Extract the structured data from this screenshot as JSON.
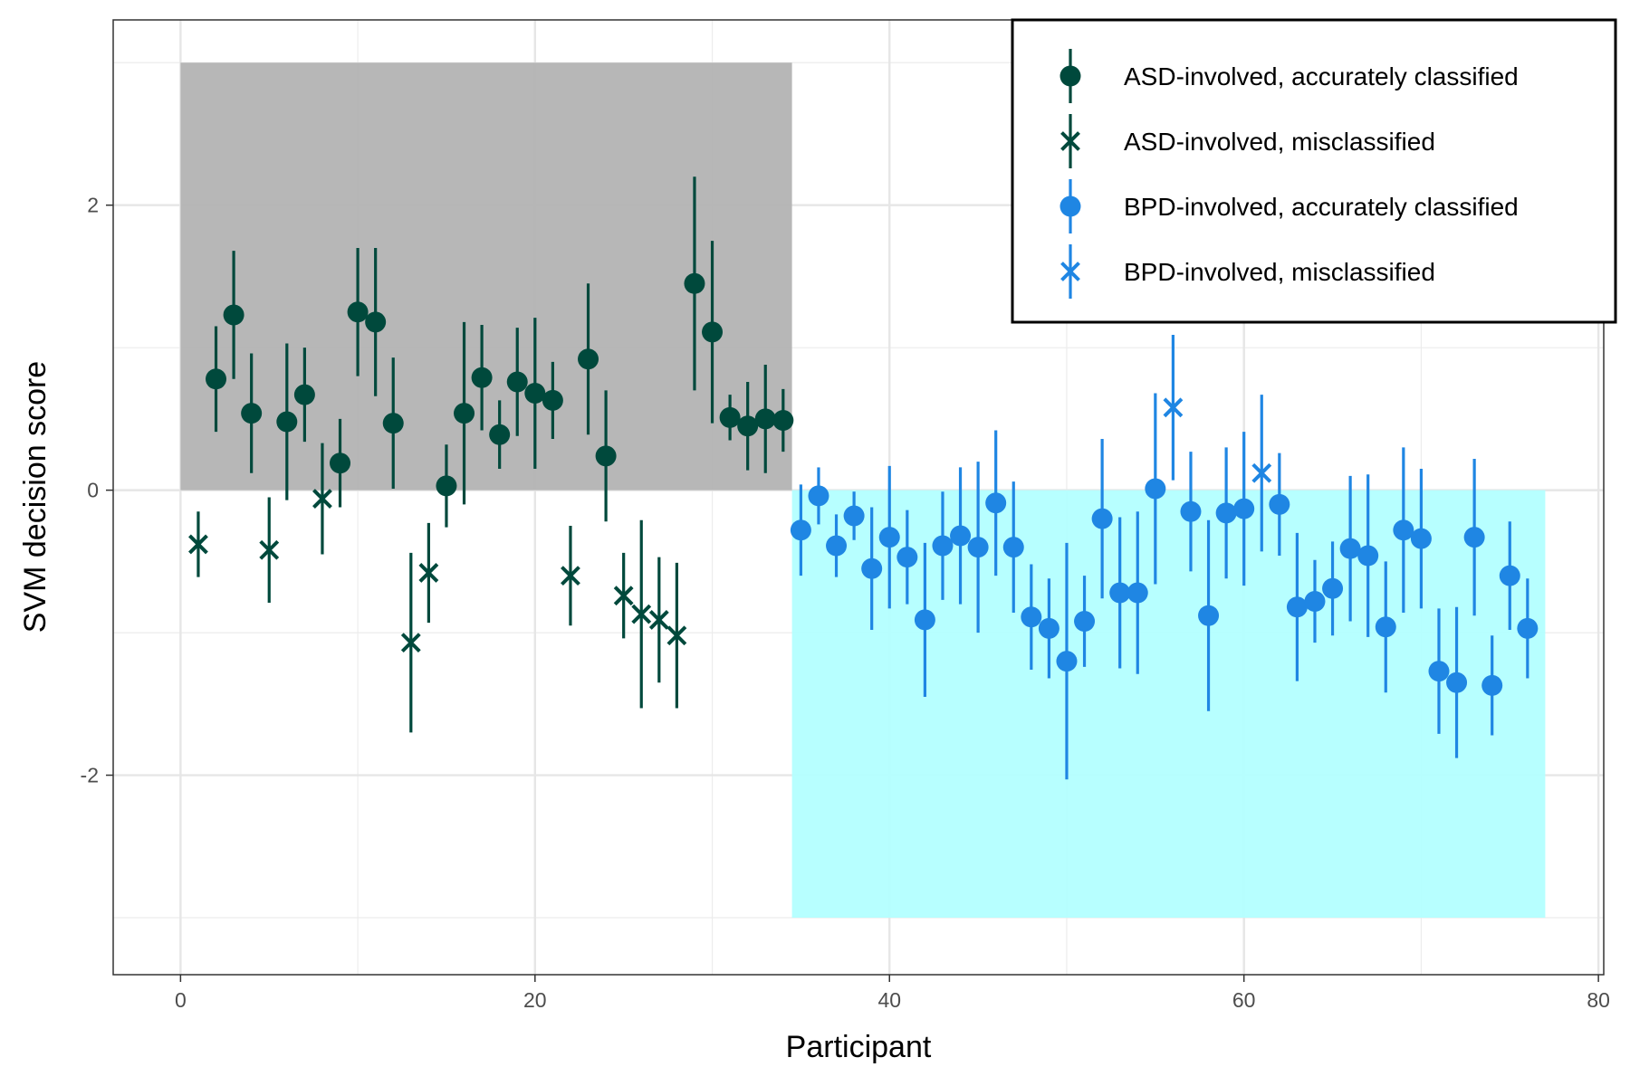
{
  "chart_data": {
    "type": "scatter",
    "title": "",
    "xlabel": "Participant",
    "ylabel": "SVM decision score",
    "xlim": [
      -3.8,
      80.3
    ],
    "ylim": [
      -3.4,
      3.3
    ],
    "x_ticks": [
      0,
      20,
      40,
      60,
      80
    ],
    "y_ticks": [
      -2,
      0,
      2
    ],
    "x_tick_labels": [
      "0",
      "20",
      "40",
      "60",
      "80"
    ],
    "y_tick_labels": [
      "-2",
      "0",
      "2"
    ],
    "grid": true,
    "legend_position": "top-right",
    "colors": {
      "asd": "#00493c",
      "bpd": "#1f86e3",
      "asd_region": "#b3b3b3",
      "bpd_region": "#b3ffff"
    },
    "regions": [
      {
        "x": [
          0,
          34.5
        ],
        "y": [
          0,
          3
        ],
        "color": "#b3b3b3"
      },
      {
        "x": [
          34.5,
          77
        ],
        "y": [
          -3,
          0
        ],
        "color": "#b3ffff"
      }
    ],
    "legend": [
      {
        "label": "ASD-involved, accurately classified",
        "group": "asd",
        "marker": "circle"
      },
      {
        "label": "ASD-involved, misclassified",
        "group": "asd",
        "marker": "x"
      },
      {
        "label": "BPD-involved, accurately classified",
        "group": "bpd",
        "marker": "circle"
      },
      {
        "label": "BPD-involved, misclassified",
        "group": "bpd",
        "marker": "x"
      }
    ],
    "series": [
      {
        "name": "ASD-involved, accurately classified",
        "group": "asd",
        "marker": "circle",
        "x": [
          2,
          3,
          4,
          6,
          7,
          9,
          10,
          11,
          12,
          15,
          16,
          17,
          18,
          19,
          20,
          21,
          23,
          24,
          29,
          30,
          31,
          32,
          33,
          34
        ],
        "y": [
          0.78,
          1.23,
          0.54,
          0.48,
          0.67,
          0.19,
          1.25,
          1.18,
          0.47,
          0.03,
          0.54,
          0.79,
          0.39,
          0.76,
          0.68,
          0.63,
          0.92,
          0.24,
          1.45,
          1.11,
          0.51,
          0.45,
          0.5,
          0.49
        ],
        "err": [
          0.37,
          0.45,
          0.42,
          0.55,
          0.33,
          0.31,
          0.45,
          0.52,
          0.46,
          0.29,
          0.64,
          0.37,
          0.24,
          0.38,
          0.53,
          0.27,
          0.53,
          0.46,
          0.75,
          0.64,
          0.16,
          0.31,
          0.38,
          0.22
        ]
      },
      {
        "name": "ASD-involved, misclassified",
        "group": "asd",
        "marker": "x",
        "x": [
          1,
          5,
          8,
          13,
          14,
          22,
          25,
          26,
          27,
          28
        ],
        "y": [
          -0.38,
          -0.42,
          -0.06,
          -1.07,
          -0.58,
          -0.6,
          -0.74,
          -0.87,
          -0.91,
          -1.02
        ],
        "err": [
          0.23,
          0.37,
          0.39,
          0.63,
          0.35,
          0.35,
          0.3,
          0.66,
          0.44,
          0.51
        ]
      },
      {
        "name": "BPD-involved, accurately classified",
        "group": "bpd",
        "marker": "circle",
        "x": [
          35,
          36,
          37,
          38,
          39,
          40,
          41,
          42,
          43,
          44,
          45,
          46,
          47,
          48,
          49,
          50,
          51,
          52,
          53,
          54,
          55,
          57,
          58,
          59,
          60,
          62,
          63,
          64,
          65,
          66,
          67,
          68,
          69,
          70,
          71,
          72,
          73,
          74,
          75,
          76
        ],
        "y": [
          -0.28,
          -0.04,
          -0.39,
          -0.18,
          -0.55,
          -0.33,
          -0.47,
          -0.91,
          -0.39,
          -0.32,
          -0.4,
          -0.09,
          -0.4,
          -0.89,
          -0.97,
          -1.2,
          -0.92,
          -0.2,
          -0.72,
          -0.72,
          0.01,
          -0.15,
          -0.88,
          -0.16,
          -0.13,
          -0.1,
          -0.82,
          -0.78,
          -0.69,
          -0.41,
          -0.46,
          -0.96,
          -0.28,
          -0.34,
          -1.27,
          -1.35,
          -0.33,
          -1.37,
          -0.6,
          -0.97
        ],
        "err": [
          0.32,
          0.2,
          0.22,
          0.17,
          0.43,
          0.5,
          0.33,
          0.54,
          0.38,
          0.48,
          0.6,
          0.51,
          0.46,
          0.37,
          0.35,
          0.83,
          0.32,
          0.56,
          0.53,
          0.57,
          0.67,
          0.42,
          0.67,
          0.46,
          0.54,
          0.36,
          0.52,
          0.29,
          0.33,
          0.51,
          0.57,
          0.46,
          0.58,
          0.49,
          0.44,
          0.53,
          0.55,
          0.35,
          0.38,
          0.35
        ]
      },
      {
        "name": "BPD-involved, misclassified",
        "group": "bpd",
        "marker": "x",
        "x": [
          56,
          61
        ],
        "y": [
          0.58,
          0.12
        ],
        "err": [
          0.51,
          0.55
        ]
      }
    ]
  }
}
